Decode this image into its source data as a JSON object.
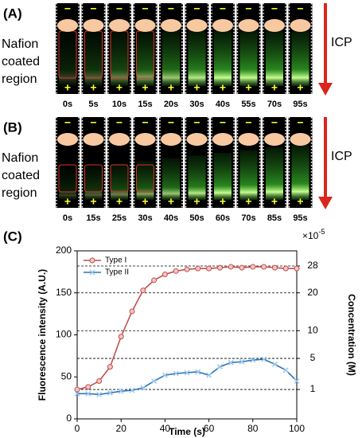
{
  "panels": [
    {
      "label": "(A)",
      "side_label": [
        "Nafion",
        "coated",
        "region"
      ],
      "arrow_label": "ICP",
      "top_sign": "−",
      "bottom_sign": "+",
      "times": [
        "0s",
        "5s",
        "10s",
        "15s",
        "20s",
        "30s",
        "40s",
        "55s",
        "70s",
        "95s"
      ]
    },
    {
      "label": "(B)",
      "side_label": [
        "Nafion",
        "coated",
        "region"
      ],
      "arrow_label": "ICP",
      "top_sign": "−",
      "bottom_sign": "+",
      "times": [
        "0s",
        "15s",
        "25s",
        "30s",
        "40s",
        "50s",
        "60s",
        "70s",
        "85s",
        "95s"
      ]
    }
  ],
  "chart_data": {
    "type": "line",
    "label": "(C)",
    "x_label": "Time (s)",
    "y_label": "Fluorescence intensity (A.U.)",
    "y2_label": "Concentration (M)",
    "y2_multiplier": "×10",
    "y2_exponent": "-5",
    "x": [
      0,
      5,
      10,
      15,
      20,
      25,
      30,
      35,
      40,
      45,
      50,
      55,
      60,
      65,
      70,
      75,
      80,
      85,
      90,
      95,
      100
    ],
    "series": [
      {
        "name": "Type I",
        "color": "#c0504d",
        "marker": "o",
        "values": [
          35,
          38,
          45,
          62,
          98,
          128,
          153,
          165,
          172,
          176,
          178,
          179,
          179,
          180,
          181,
          180,
          181,
          181,
          180,
          179,
          179
        ]
      },
      {
        "name": "Type II",
        "color": "#2e75b6",
        "marker": "x",
        "values": [
          30,
          30,
          29,
          31,
          33,
          34,
          37,
          45,
          52,
          54,
          55,
          56,
          52,
          62,
          67,
          68,
          70,
          71,
          65,
          58,
          45
        ]
      }
    ],
    "xlim": [
      0,
      100
    ],
    "xticks": [
      0,
      20,
      40,
      60,
      80,
      100
    ],
    "ylim": [
      0,
      200
    ],
    "yticks": [
      0,
      50,
      100,
      150,
      200
    ],
    "calibration": [
      {
        "concentration": 1,
        "intensity": 35
      },
      {
        "concentration": 5,
        "intensity": 72
      },
      {
        "concentration": 10,
        "intensity": 105
      },
      {
        "concentration": 20,
        "intensity": 150
      },
      {
        "concentration": 28,
        "intensity": 182
      }
    ],
    "legend": "upper left"
  }
}
